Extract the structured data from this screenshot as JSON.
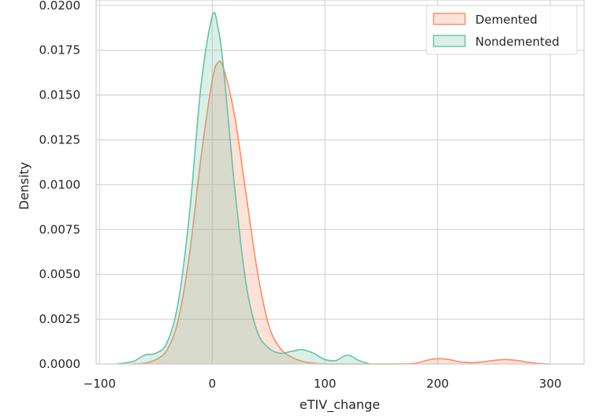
{
  "chart_data": {
    "type": "area",
    "xlabel": "eTIV_change",
    "ylabel": "Density",
    "xlim": [
      -103,
      330
    ],
    "ylim": [
      0,
      0.0203
    ],
    "xticks": [
      -100,
      0,
      100,
      200,
      300
    ],
    "xtick_labels": [
      "−100",
      "0",
      "100",
      "200",
      "300"
    ],
    "yticks": [
      0,
      0.0025,
      0.005,
      0.0075,
      0.01,
      0.0125,
      0.015,
      0.0175,
      0.02
    ],
    "ytick_labels": [
      "0.0000",
      "0.0025",
      "0.0050",
      "0.0075",
      "0.0100",
      "0.0125",
      "0.0150",
      "0.0175",
      "0.0200"
    ],
    "grid": true,
    "legend_position": "top-right",
    "series": [
      {
        "name": "Demented",
        "line_color": "#fc8d62",
        "fill_color": "#fc8d62",
        "x": [
          -70,
          -60,
          -50,
          -40,
          -30,
          -20,
          -10,
          0,
          5,
          10,
          20,
          30,
          40,
          50,
          60,
          70,
          80,
          90,
          100,
          120,
          140,
          160,
          180,
          190,
          200,
          210,
          220,
          230,
          240,
          250,
          260,
          270,
          280,
          290,
          300
        ],
        "y": [
          0,
          4e-05,
          0.00025,
          0.0008,
          0.0025,
          0.0062,
          0.0115,
          0.0158,
          0.0168,
          0.0165,
          0.0138,
          0.0095,
          0.0052,
          0.0022,
          0.0009,
          0.0004,
          0.00015,
          5e-05,
          1e-05,
          0,
          0,
          0,
          4e-05,
          0.0002,
          0.0003,
          0.00025,
          0.00012,
          8e-05,
          0.00012,
          0.0002,
          0.00025,
          0.0002,
          0.0001,
          3e-05,
          0
        ]
      },
      {
        "name": "Nondemented",
        "line_color": "#66c2a5",
        "fill_color": "#66c2a5",
        "x": [
          -85,
          -70,
          -60,
          -50,
          -40,
          -30,
          -20,
          -10,
          0,
          5,
          10,
          20,
          30,
          40,
          50,
          60,
          70,
          80,
          90,
          100,
          110,
          120,
          130,
          140
        ],
        "y": [
          0,
          0.00015,
          0.0005,
          0.0006,
          0.0012,
          0.0035,
          0.0085,
          0.0155,
          0.0194,
          0.0188,
          0.0165,
          0.0098,
          0.0045,
          0.0018,
          0.0009,
          0.0006,
          0.0007,
          0.0008,
          0.0006,
          0.00025,
          0.0002,
          0.0005,
          0.0002,
          0
        ]
      }
    ]
  }
}
